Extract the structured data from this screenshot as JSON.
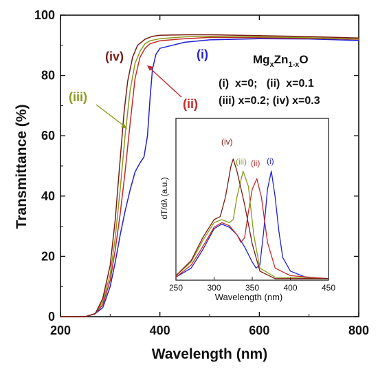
{
  "chart_data": [
    {
      "type": "line",
      "xlabel": "Wavelength (nm)",
      "ylabel": "Transmittance (%)",
      "xlim": [
        200,
        800
      ],
      "ylim": [
        0,
        100
      ],
      "xticks": [
        200,
        400,
        600,
        800
      ],
      "yticks": [
        0,
        20,
        40,
        60,
        80,
        100
      ],
      "legend": {
        "formula": {
          "base1": "Mg",
          "sub1": "x",
          "base2": "Zn",
          "sub2": "1-x",
          "base3": "O"
        },
        "line1": "(i)  x=0;   (ii)  x=0.1",
        "line2": "(iii) x=0.2; (iv) x=0.3"
      },
      "series": [
        {
          "label": "(i)",
          "color": "#1f1fd6",
          "points": [
            [
              200,
              0
            ],
            [
              250,
              0
            ],
            [
              270,
              1
            ],
            [
              285,
              3
            ],
            [
              300,
              10
            ],
            [
              310,
              18
            ],
            [
              320,
              27
            ],
            [
              330,
              35
            ],
            [
              340,
              42
            ],
            [
              350,
              48
            ],
            [
              360,
              51
            ],
            [
              368,
              53
            ],
            [
              375,
              60
            ],
            [
              380,
              72
            ],
            [
              385,
              82
            ],
            [
              392,
              87
            ],
            [
              400,
              89
            ],
            [
              450,
              91
            ],
            [
              500,
              91.8
            ],
            [
              600,
              92.2
            ],
            [
              700,
              92.1
            ],
            [
              800,
              91.6
            ]
          ]
        },
        {
          "label": "(ii)",
          "color": "#c62828",
          "points": [
            [
              200,
              0
            ],
            [
              250,
              0
            ],
            [
              270,
              1
            ],
            [
              285,
              4
            ],
            [
              300,
              12
            ],
            [
              310,
              22
            ],
            [
              320,
              34
            ],
            [
              330,
              48
            ],
            [
              340,
              64
            ],
            [
              350,
              79
            ],
            [
              360,
              86
            ],
            [
              370,
              89
            ],
            [
              380,
              90.5
            ],
            [
              400,
              91.5
            ],
            [
              450,
              92.2
            ],
            [
              500,
              92.6
            ],
            [
              600,
              92.5
            ],
            [
              700,
              92.3
            ],
            [
              800,
              92
            ]
          ]
        },
        {
          "label": "(iii)",
          "color": "#8a9a1a",
          "points": [
            [
              200,
              0
            ],
            [
              250,
              0
            ],
            [
              270,
              1
            ],
            [
              285,
              5
            ],
            [
              300,
              14
            ],
            [
              310,
              26
            ],
            [
              320,
              42
            ],
            [
              330,
              60
            ],
            [
              340,
              75
            ],
            [
              350,
              84
            ],
            [
              360,
              88
            ],
            [
              370,
              90.5
            ],
            [
              380,
              91.5
            ],
            [
              400,
              92.2
            ],
            [
              450,
              92.8
            ],
            [
              500,
              93
            ],
            [
              600,
              92.8
            ],
            [
              700,
              92.5
            ],
            [
              800,
              92.1
            ]
          ]
        },
        {
          "label": "(iv)",
          "color": "#7a1a12",
          "points": [
            [
              200,
              0
            ],
            [
              250,
              0
            ],
            [
              270,
              1
            ],
            [
              285,
              6
            ],
            [
              300,
              17
            ],
            [
              310,
              32
            ],
            [
              320,
              52
            ],
            [
              328,
              68
            ],
            [
              335,
              78
            ],
            [
              345,
              86
            ],
            [
              355,
              90
            ],
            [
              370,
              92
            ],
            [
              385,
              93
            ],
            [
              400,
              93.3
            ],
            [
              450,
              93.5
            ],
            [
              500,
              93.5
            ],
            [
              600,
              93.2
            ],
            [
              700,
              92.9
            ],
            [
              800,
              92.4
            ]
          ]
        }
      ],
      "annotations": [
        {
          "text": "(i)",
          "color": "#1f1fd6"
        },
        {
          "text": "(ii)",
          "color": "#c62828"
        },
        {
          "text": "(iii)",
          "color": "#8a9a1a"
        },
        {
          "text": "(iv)",
          "color": "#7a1a12"
        }
      ]
    },
    {
      "type": "line",
      "xlabel": "Wavelength (nm)",
      "ylabel": "dT/dλ (a.u.)",
      "xlim": [
        250,
        450
      ],
      "xticks": [
        250,
        300,
        350,
        400,
        450
      ],
      "ylim": [
        0,
        1
      ],
      "series": [
        {
          "label": "(i)",
          "color": "#1f1fd6",
          "points": [
            [
              250,
              0.02
            ],
            [
              270,
              0.08
            ],
            [
              285,
              0.2
            ],
            [
              300,
              0.34
            ],
            [
              310,
              0.37
            ],
            [
              320,
              0.35
            ],
            [
              330,
              0.3
            ],
            [
              340,
              0.22
            ],
            [
              350,
              0.12
            ],
            [
              355,
              0.08
            ],
            [
              360,
              0.1
            ],
            [
              365,
              0.32
            ],
            [
              370,
              0.6
            ],
            [
              375,
              0.72
            ],
            [
              380,
              0.55
            ],
            [
              385,
              0.32
            ],
            [
              390,
              0.15
            ],
            [
              400,
              0.06
            ],
            [
              420,
              0.02
            ],
            [
              450,
              0.01
            ]
          ]
        },
        {
          "label": "(ii)",
          "color": "#c62828",
          "points": [
            [
              250,
              0.02
            ],
            [
              270,
              0.1
            ],
            [
              285,
              0.22
            ],
            [
              300,
              0.35
            ],
            [
              310,
              0.38
            ],
            [
              320,
              0.36
            ],
            [
              330,
              0.3
            ],
            [
              335,
              0.25
            ],
            [
              340,
              0.28
            ],
            [
              345,
              0.45
            ],
            [
              350,
              0.6
            ],
            [
              356,
              0.67
            ],
            [
              362,
              0.55
            ],
            [
              370,
              0.25
            ],
            [
              380,
              0.08
            ],
            [
              400,
              0.03
            ],
            [
              450,
              0.01
            ]
          ]
        },
        {
          "label": "(iii)",
          "color": "#8a9a1a",
          "points": [
            [
              250,
              0.03
            ],
            [
              270,
              0.12
            ],
            [
              285,
              0.26
            ],
            [
              300,
              0.38
            ],
            [
              310,
              0.4
            ],
            [
              320,
              0.38
            ],
            [
              325,
              0.4
            ],
            [
              330,
              0.55
            ],
            [
              338,
              0.72
            ],
            [
              345,
              0.62
            ],
            [
              352,
              0.3
            ],
            [
              360,
              0.08
            ],
            [
              380,
              0.02
            ],
            [
              450,
              0.01
            ]
          ]
        },
        {
          "label": "(iv)",
          "color": "#7a1a12",
          "points": [
            [
              250,
              0.03
            ],
            [
              270,
              0.13
            ],
            [
              285,
              0.28
            ],
            [
              300,
              0.4
            ],
            [
              308,
              0.42
            ],
            [
              315,
              0.55
            ],
            [
              322,
              0.75
            ],
            [
              325,
              0.8
            ],
            [
              330,
              0.72
            ],
            [
              340,
              0.5
            ],
            [
              350,
              0.24
            ],
            [
              360,
              0.06
            ],
            [
              380,
              0.01
            ],
            [
              450,
              0.01
            ]
          ]
        }
      ],
      "annotations": [
        {
          "text": "(i)",
          "color": "#1f1fd6"
        },
        {
          "text": "(ii)",
          "color": "#c62828"
        },
        {
          "text": "(iii)",
          "color": "#8a9a1a"
        },
        {
          "text": "(iv)",
          "color": "#7a1a12"
        }
      ]
    }
  ]
}
